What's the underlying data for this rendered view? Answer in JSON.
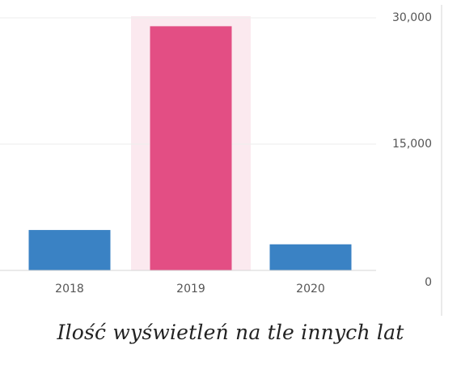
{
  "chart_data": {
    "type": "bar",
    "categories": [
      "2018",
      "2019",
      "2020"
    ],
    "values": [
      4800,
      29000,
      3100
    ],
    "highlight_category": "2019",
    "ylim": [
      0,
      30000
    ],
    "yticks": [
      "0",
      "15,000",
      "30,000"
    ],
    "y_axis_side": "right",
    "grid": true,
    "colors": {
      "bar": "#3a82c4",
      "highlight_bar": "#e34e84",
      "highlight_band": "#fbe9ef",
      "grid": "#eeeeee",
      "axis": "#d4d4d4",
      "tick_text": "#555555"
    }
  },
  "caption": "Ilość wyświetleń na tle innych lat"
}
